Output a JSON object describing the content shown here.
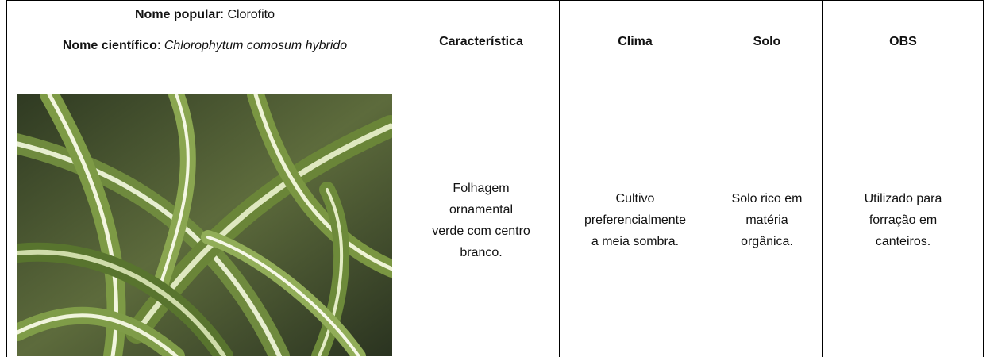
{
  "header": {
    "popular_name": {
      "label": "Nome popular",
      "value": ": Clorofito"
    },
    "scientific_name": {
      "label": "Nome científico",
      "separator": ": ",
      "value": "Chlorophytum comosum hybrido"
    },
    "columns": [
      "Característica",
      "Clima",
      "Solo",
      "OBS"
    ]
  },
  "row": {
    "caracteristica": [
      "Folhagem",
      "ornamental",
      "verde com centro",
      "branco."
    ],
    "clima": [
      "Cultivo",
      "preferencialmente",
      "a meia sombra."
    ],
    "solo": [
      "Solo rico em",
      "matéria",
      "orgânica."
    ],
    "obs": [
      "Utilizado para",
      "forração em",
      "canteiros."
    ]
  }
}
